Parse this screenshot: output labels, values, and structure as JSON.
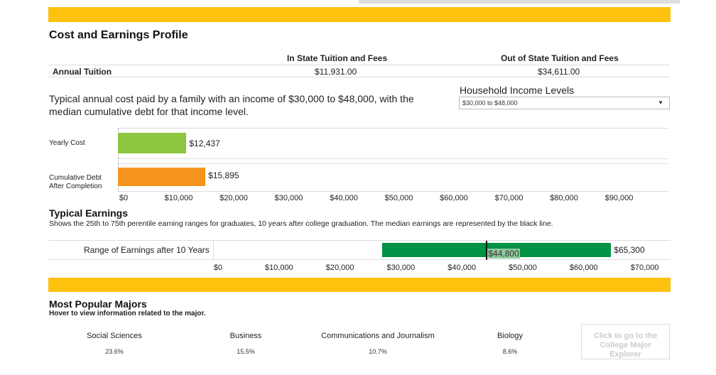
{
  "title": "Cost and Earnings Profile",
  "tuition": {
    "headers": [
      "In State Tuition and Fees",
      "Out of State Tuition and Fees"
    ],
    "row_label": "Annual Tuition",
    "in_state": "$11,931.00",
    "out_state": "$34,611.00"
  },
  "cost": {
    "description": "Typical annual cost paid by a family with an income of $30,000 to $48,000, with the median cumulative debt for that income level.",
    "income_label": "Household Income Levels",
    "income_selected": "$30,000 to $48,000",
    "dropdown_icon": "caret-down-icon"
  },
  "chart_data": [
    {
      "type": "bar",
      "orientation": "horizontal",
      "categories": [
        "Yearly Cost",
        "Cumulative Debt After Completion"
      ],
      "values": [
        12437,
        15895
      ],
      "value_labels": [
        "$12,437",
        "$15,895"
      ],
      "colors": [
        "#8dc63f",
        "#f7941d"
      ],
      "xlim": [
        0,
        100000
      ],
      "ticks": [
        "$0",
        "$10,000",
        "$20,000",
        "$30,000",
        "$40,000",
        "$50,000",
        "$60,000",
        "$70,000",
        "$80,000",
        "$90,000"
      ]
    },
    {
      "type": "bar",
      "orientation": "horizontal",
      "title": "Typical Earnings",
      "subtitle": "Shows the 25th to 75th perentile earning ranges for graduates, 10 years after college graduation. The median earnings are represented by the black line.",
      "category": "Range of Earnings after 10 Years",
      "range": [
        27700,
        65300
      ],
      "median": 44800,
      "median_label": "$44,800",
      "high_label": "$65,300",
      "color": "#009245",
      "xlim": [
        0,
        73000
      ],
      "ticks": [
        "$0",
        "$10,000",
        "$20,000",
        "$30,000",
        "$40,000",
        "$50,000",
        "$60,000",
        "$70,000"
      ]
    }
  ],
  "majors": {
    "title": "Most Popular Majors",
    "subtitle": "Hover to view information related to the major.",
    "items": [
      {
        "name": "Social Sciences",
        "pct": "23.6%"
      },
      {
        "name": "Business",
        "pct": "15.5%"
      },
      {
        "name": "Communications and Journalism",
        "pct": "10.7%"
      },
      {
        "name": "Biology",
        "pct": "8.6%"
      }
    ],
    "explorer_button": "Click to go to the College Major Explorer"
  }
}
